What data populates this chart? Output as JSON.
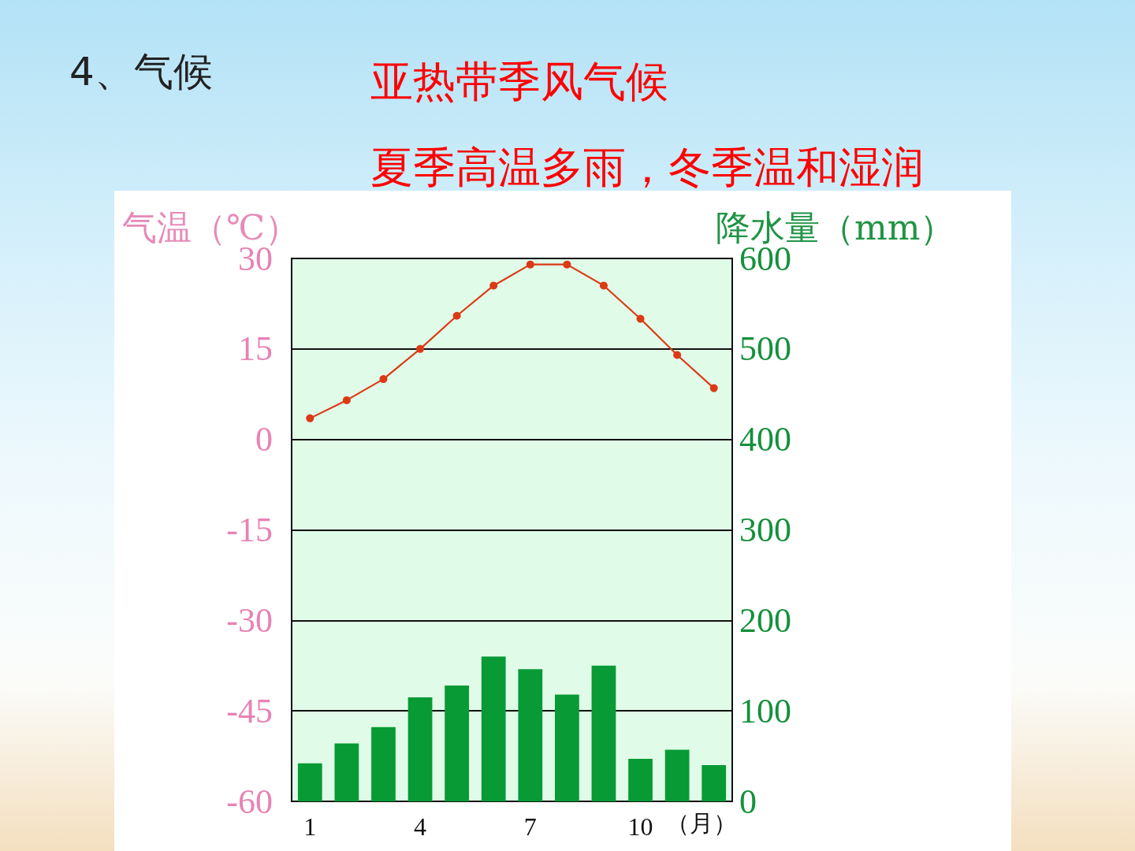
{
  "chart_data": {
    "type": "bar",
    "title": "4、气候",
    "subtitle": "亚热带季风气候",
    "annotations": [
      "夏季高温多雨，冬季温和湿润"
    ],
    "ylabel": "气温（℃）",
    "y2label": "降水量（mm）",
    "xlabel": "（月）",
    "categories": [
      "1",
      null,
      null,
      "4",
      null,
      null,
      "7",
      null,
      null,
      "10",
      null,
      null
    ],
    "series": [
      {
        "axis": "y2",
        "color": "#079a35",
        "values": [
          42,
          64,
          82,
          115,
          128,
          160,
          146,
          118,
          150,
          47,
          57,
          40
        ]
      },
      {
        "type": "line",
        "color": "#dc3a16",
        "values": [
          3.5,
          6.5,
          10,
          15,
          20.5,
          25.5,
          29,
          29,
          25.5,
          20,
          14,
          8.5
        ]
      }
    ],
    "marker": "circle",
    "grid": "y",
    "ylim": [
      -60,
      30
    ],
    "yticks": [
      -60,
      -45,
      -30,
      -15,
      0,
      15,
      30
    ],
    "y2lim": [
      0,
      600
    ],
    "y2ticks": [
      0,
      100,
      200,
      300,
      400,
      500,
      600
    ]
  }
}
